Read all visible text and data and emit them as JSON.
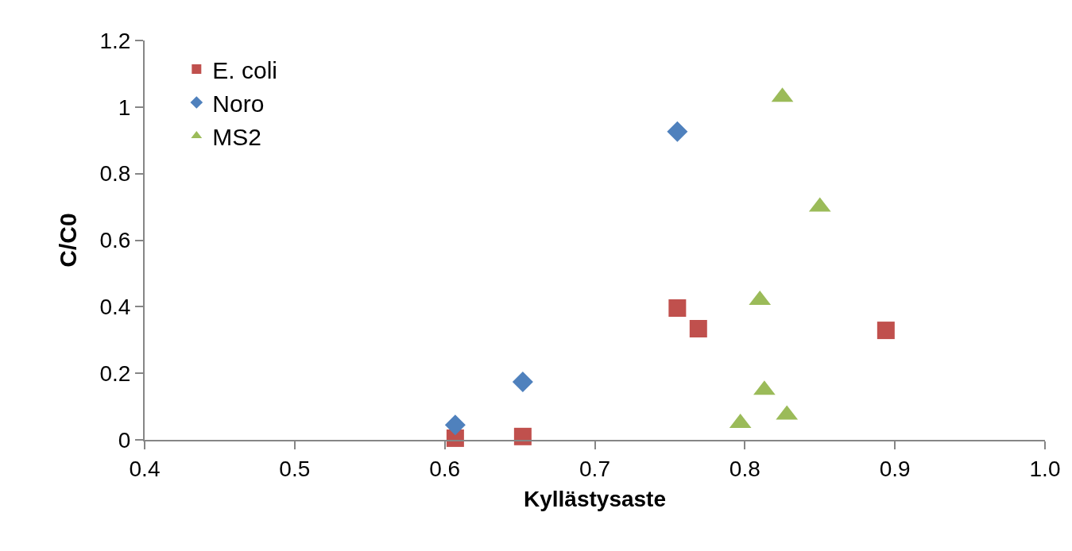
{
  "chart_data": {
    "type": "scatter",
    "xlabel": "Kyllästysaste",
    "ylabel": "C/C0",
    "xlim": [
      0.4,
      1.0
    ],
    "xticks": [
      0.4,
      0.5,
      0.6,
      0.7,
      0.8,
      0.9,
      {
        "value": 1,
        "label": "1.0"
      }
    ],
    "ylim": [
      0,
      1.2
    ],
    "yticks": [
      0,
      0.2,
      0.4,
      0.6,
      0.8,
      1,
      1.2
    ],
    "grid": false,
    "legend": "top left",
    "series": [
      {
        "name": "E. coli",
        "color": "#c0504d",
        "marker": "square",
        "x": [
          0.607,
          0.652,
          0.755,
          0.769,
          0.894
        ],
        "values": [
          0.005,
          0.01,
          0.396,
          0.334,
          0.329
        ]
      },
      {
        "name": "Noro",
        "color": "#4f81bd",
        "marker": "diamond",
        "x": [
          0.607,
          0.652,
          0.755
        ],
        "values": [
          0.045,
          0.174,
          0.926
        ]
      },
      {
        "name": "MS2",
        "color": "#9bbb59",
        "marker": "triangle",
        "x": [
          0.825,
          0.85,
          0.81,
          0.813,
          0.828,
          0.797
        ],
        "values": [
          1.03,
          0.7,
          0.42,
          0.15,
          0.075,
          0.05
        ]
      }
    ]
  }
}
